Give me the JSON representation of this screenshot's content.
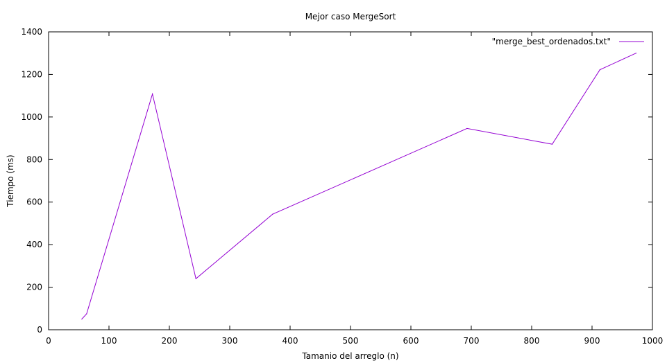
{
  "chart_data": {
    "type": "line",
    "title": "Mejor caso MergeSort",
    "xlabel": "Tamanio del arreglo (n)",
    "ylabel": "Tiempo (ms)",
    "xlim": [
      0,
      1000
    ],
    "ylim": [
      0,
      1400
    ],
    "xticks": [
      0,
      100,
      200,
      300,
      400,
      500,
      600,
      700,
      800,
      900,
      1000
    ],
    "yticks": [
      0,
      200,
      400,
      600,
      800,
      1000,
      1200,
      1400
    ],
    "grid": false,
    "legend_position": "top-right",
    "series": [
      {
        "name": "\"merge_best_ordenados.txt\"",
        "color": "#9400d3",
        "x": [
          55,
          63,
          172,
          244,
          371,
          693,
          834,
          913,
          973
        ],
        "y": [
          50,
          75,
          1108,
          240,
          543,
          946,
          872,
          1222,
          1300
        ]
      }
    ]
  }
}
